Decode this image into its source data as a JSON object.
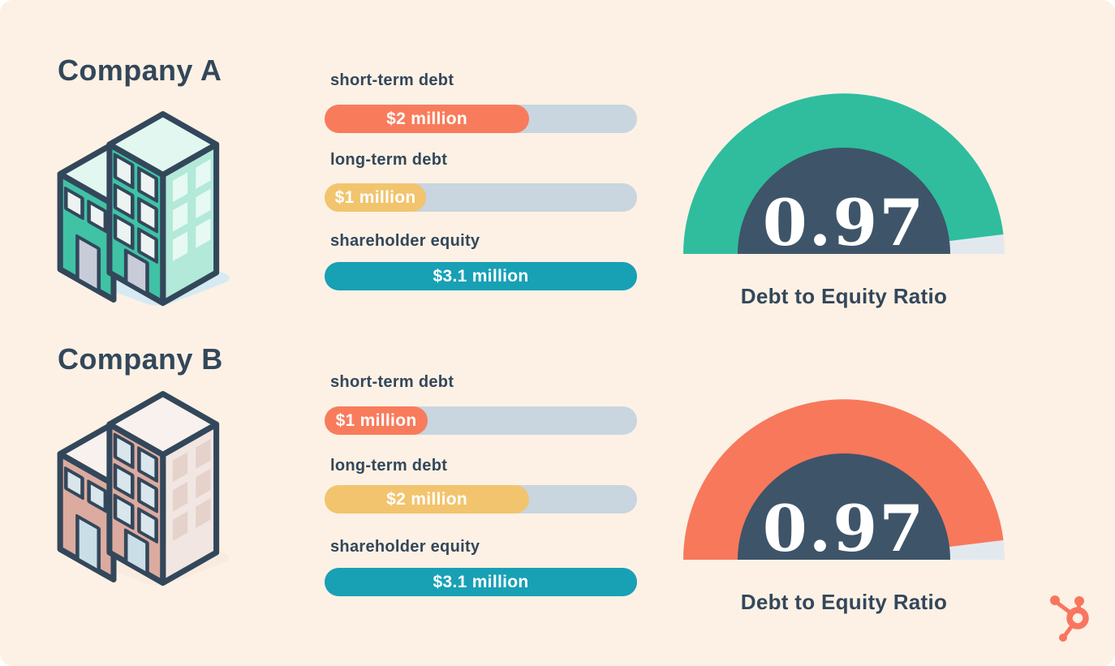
{
  "chart_data": [
    {
      "type": "bar",
      "title": "Company A",
      "categories": [
        "short-term debt",
        "long-term debt",
        "shareholder equity"
      ],
      "values": [
        2,
        1,
        3.1
      ],
      "value_labels": [
        "$2 million",
        "$1 million",
        "$3.1 million"
      ],
      "unit": "million USD",
      "xlim": [
        0,
        3.1
      ],
      "orientation": "horizontal",
      "grid": false
    },
    {
      "type": "gauge",
      "company": "Company A",
      "title": "Debt to Equity Ratio",
      "value": 0.97,
      "fill_fraction": 0.96
    },
    {
      "type": "bar",
      "title": "Company B",
      "categories": [
        "short-term debt",
        "long-term debt",
        "shareholder equity"
      ],
      "values": [
        1,
        2,
        3.1
      ],
      "value_labels": [
        "$1 million",
        "$2 million",
        "$3.1 million"
      ],
      "unit": "million USD",
      "xlim": [
        0,
        3.1
      ],
      "orientation": "horizontal",
      "grid": false
    },
    {
      "type": "gauge",
      "company": "Company B",
      "title": "Debt to Equity Ratio",
      "value": 0.97,
      "fill_fraction": 0.96
    }
  ],
  "palette": {
    "css_vars": {
      "bg": "#FCF1E4",
      "ink": "#33475B",
      "track": "#C9D5DF",
      "gauge-inner": "#3E5469",
      "sliver": "#E2E9EE",
      "a-front": "#40C2A5",
      "a-top": "#E2F7F0",
      "a-side": "#B2E9D9",
      "a-win": "#ECF3F1",
      "a-sidewin": "#E6F9F2",
      "a-door": "#C8CCD8",
      "a-shadow": "#D5EAF2",
      "b-front": "#DCAB9F",
      "b-top": "#F8F1ED",
      "b-side": "#F1E6E1",
      "b-win": "#D9E6EC",
      "b-sidewin": "#E4D2CB",
      "b-door": "#C9DEE6",
      "b-shadow": "#F9EBE0"
    }
  },
  "companies": [
    {
      "name": "Company A",
      "building_alt": "teal-office-buildings-illustration",
      "bars": [
        {
          "label": "short-term debt",
          "value_label": "$2 million",
          "fill_pct": 65.5,
          "color": "#F87C5C"
        },
        {
          "label": "long-term debt",
          "value_label": "$1 million",
          "fill_pct": 32.5,
          "color": "#F2C46D"
        },
        {
          "label": "shareholder equity",
          "value_label": "$3.1 million",
          "fill_pct": 100,
          "color": "#18A0B5"
        }
      ],
      "gauge": {
        "value": "0.97",
        "label": "Debt to Equity Ratio",
        "fill_color": "#2FBD9E"
      }
    },
    {
      "name": "Company B",
      "building_alt": "pink-office-buildings-illustration",
      "bars": [
        {
          "label": "short-term debt",
          "value_label": "$1 million",
          "fill_pct": 33,
          "color": "#F87C5C"
        },
        {
          "label": "long-term debt",
          "value_label": "$2 million",
          "fill_pct": 65.5,
          "color": "#F2C46D"
        },
        {
          "label": "shareholder equity",
          "value_label": "$3.1 million",
          "fill_pct": 100,
          "color": "#18A0B5"
        }
      ],
      "gauge": {
        "value": "0.97",
        "label": "Debt to Equity Ratio",
        "fill_color": "#F8785C"
      }
    }
  ],
  "logo": {
    "name": "hubspot-sprocket",
    "color": "#F8765F"
  }
}
